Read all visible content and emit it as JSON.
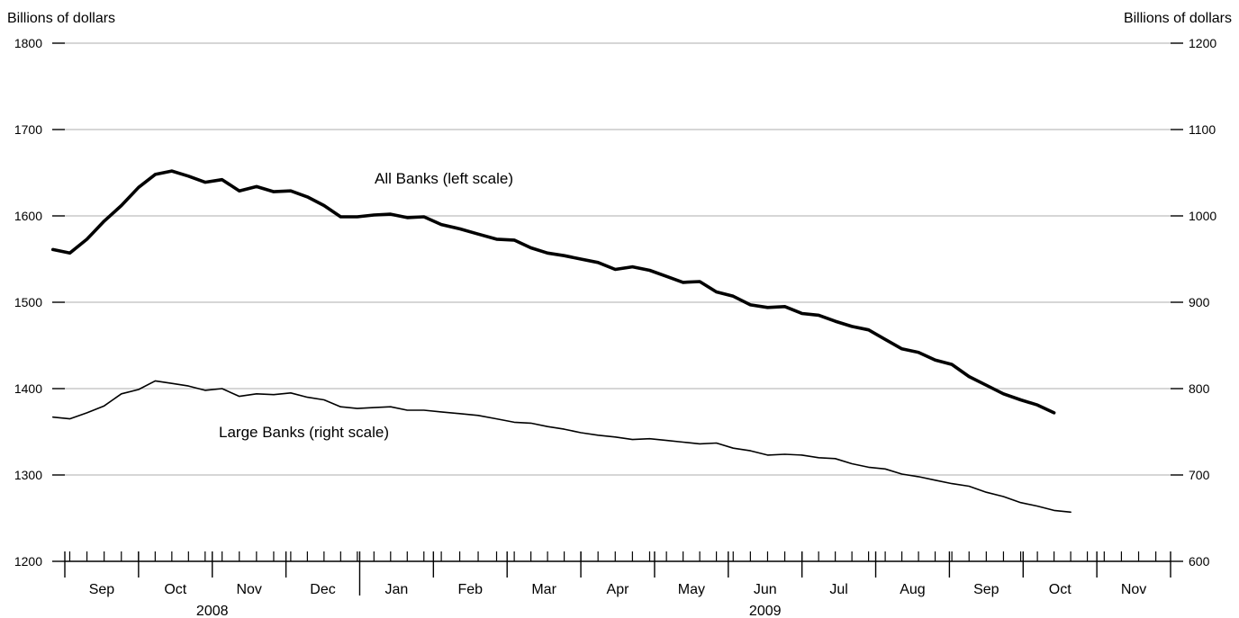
{
  "chart_data": {
    "type": "line",
    "title": "",
    "left_axis": {
      "unit_label": "Billions of dollars",
      "range": [
        1200,
        1800
      ],
      "ticks": [
        "1800",
        "1700",
        "1600",
        "1500",
        "1400",
        "1300",
        "1200"
      ]
    },
    "right_axis": {
      "unit_label": "Billions of dollars",
      "range": [
        600,
        1200
      ],
      "ticks": [
        "1200",
        "1100",
        "1000",
        "900",
        "800",
        "700",
        "600"
      ]
    },
    "x_axis": {
      "months": [
        "Sep",
        "Oct",
        "Nov",
        "Dec",
        "Jan",
        "Feb",
        "Mar",
        "Apr",
        "May",
        "Jun",
        "Jul",
        "Aug",
        "Sep",
        "Oct",
        "Nov"
      ],
      "years": [
        {
          "label": "2008",
          "months": [
            "Sep",
            "Oct",
            "Nov",
            "Dec"
          ]
        },
        {
          "label": "2009",
          "months": [
            "Jan",
            "Feb",
            "Mar",
            "Apr",
            "May",
            "Jun",
            "Jul",
            "Aug",
            "Sep",
            "Oct",
            "Nov"
          ]
        }
      ],
      "period": "2008-08-27 to 2009-11-30, weekly"
    },
    "grid": true,
    "series": [
      {
        "name": "All Banks (left scale)",
        "axis": "left",
        "weight": "heavy",
        "start_date": "2008-08-27",
        "interval_days": 7,
        "values": [
          1561,
          1557,
          1573,
          1594,
          1612,
          1633,
          1648,
          1652,
          1646,
          1639,
          1642,
          1629,
          1634,
          1628,
          1629,
          1622,
          1612,
          1599,
          1599,
          1601,
          1602,
          1598,
          1599,
          1590,
          1585,
          1579,
          1573,
          1572,
          1563,
          1557,
          1554,
          1550,
          1546,
          1538,
          1541,
          1537,
          1530,
          1523,
          1524,
          1512,
          1507,
          1497,
          1494,
          1495,
          1487,
          1485,
          1478,
          1472,
          1468,
          1457,
          1446,
          1442,
          1433,
          1428,
          1414,
          1404,
          1394,
          1387,
          1381,
          1372
        ]
      },
      {
        "name": "Large Banks (right scale)",
        "axis": "right",
        "weight": "thin",
        "start_date": "2008-08-27",
        "interval_days": 7,
        "values": [
          767,
          765,
          772,
          780,
          794,
          799,
          809,
          806,
          803,
          798,
          800,
          791,
          794,
          793,
          795,
          790,
          787,
          779,
          777,
          778,
          779,
          775,
          775,
          773,
          771,
          769,
          765,
          761,
          760,
          756,
          753,
          749,
          746,
          744,
          741,
          742,
          740,
          738,
          736,
          737,
          731,
          728,
          723,
          724,
          723,
          720,
          719,
          713,
          709,
          707,
          701,
          698,
          694,
          690,
          687,
          680,
          675,
          668,
          664,
          659,
          657
        ]
      }
    ],
    "annotations": [
      {
        "text": "All Banks (left scale)",
        "series": "All Banks (left scale)"
      },
      {
        "text": "Large Banks (right scale)",
        "series": "Large Banks (right scale)"
      }
    ]
  }
}
